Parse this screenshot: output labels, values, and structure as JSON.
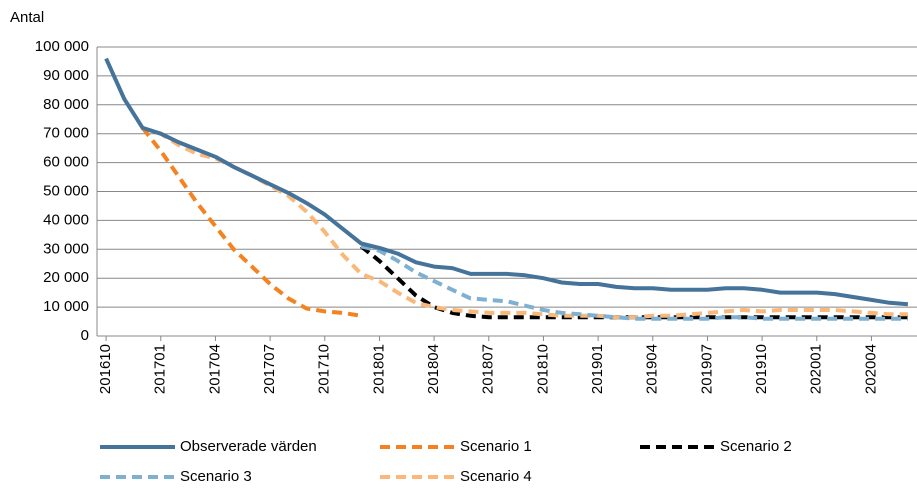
{
  "chart_data": {
    "type": "line",
    "y_label": "Antal",
    "categories": [
      "201610",
      null,
      null,
      "201701",
      null,
      null,
      "201704",
      null,
      null,
      "201707",
      null,
      null,
      "201710",
      null,
      null,
      "201801",
      null,
      null,
      "201804",
      null,
      null,
      "201807",
      null,
      null,
      "201810",
      null,
      null,
      "201901",
      null,
      null,
      "201904",
      null,
      null,
      "201907",
      null,
      null,
      "201910",
      null,
      null,
      "202001",
      null,
      null,
      "202004",
      null,
      null
    ],
    "ylim": [
      0,
      100000
    ],
    "yticks": [
      {
        "value": 0,
        "label": "0"
      },
      {
        "value": 10000,
        "label": "10 000"
      },
      {
        "value": 20000,
        "label": "20 000"
      },
      {
        "value": 30000,
        "label": "30 000"
      },
      {
        "value": 40000,
        "label": "40 000"
      },
      {
        "value": 50000,
        "label": "50 000"
      },
      {
        "value": 60000,
        "label": "60 000"
      },
      {
        "value": 70000,
        "label": "70 000"
      },
      {
        "value": 80000,
        "label": "80 000"
      },
      {
        "value": 90000,
        "label": "90 000"
      },
      {
        "value": 100000,
        "label": "100 000"
      }
    ],
    "grid": true,
    "legend": "bottom",
    "series": [
      {
        "name": "Observerade värden",
        "color": "#45739a",
        "dashed": false,
        "values": [
          96000,
          82000,
          72000,
          70000,
          67000,
          64500,
          62000,
          58500,
          55500,
          52500,
          49500,
          46000,
          42000,
          37000,
          32000,
          30500,
          28500,
          25500,
          24000,
          23500,
          21500,
          21500,
          21500,
          21000,
          20000,
          18500,
          18000,
          18000,
          17000,
          16500,
          16500,
          16000,
          16000,
          16000,
          16500,
          16500,
          16000,
          15000,
          15000,
          15000,
          14500,
          13500,
          12500,
          11500,
          11000
        ]
      },
      {
        "name": "Scenario 1",
        "color": "#f58220",
        "dashed": true,
        "values": [
          null,
          null,
          72000,
          64000,
          55000,
          46000,
          38000,
          30000,
          24000,
          18000,
          13000,
          9500,
          8500,
          8000,
          7000,
          null,
          null,
          null,
          null,
          null,
          null,
          null,
          null,
          null,
          null,
          null,
          null,
          null,
          null,
          null,
          null,
          null,
          null,
          null,
          null,
          null,
          null,
          null,
          null,
          null,
          null,
          null,
          null,
          null,
          null
        ]
      },
      {
        "name": "Scenario 2",
        "color": "#000000",
        "dashed": true,
        "values": [
          null,
          null,
          null,
          null,
          null,
          null,
          null,
          null,
          null,
          null,
          null,
          null,
          null,
          null,
          31000,
          26000,
          20000,
          14000,
          10000,
          8000,
          7000,
          6500,
          6500,
          6500,
          6500,
          6500,
          6500,
          6500,
          6500,
          6500,
          6500,
          6500,
          6500,
          6500,
          6500,
          6500,
          6500,
          6500,
          6500,
          6500,
          6500,
          6500,
          6500,
          6500,
          6500
        ]
      },
      {
        "name": "Scenario 3",
        "color": "#7fb0d2",
        "dashed": true,
        "values": [
          null,
          null,
          null,
          null,
          null,
          null,
          null,
          null,
          null,
          null,
          null,
          null,
          null,
          null,
          31000,
          29500,
          26000,
          22000,
          19000,
          16000,
          13000,
          12500,
          12000,
          10500,
          9000,
          8000,
          7500,
          7000,
          6500,
          6000,
          6000,
          6000,
          6000,
          6000,
          6500,
          6500,
          6000,
          6000,
          6000,
          6000,
          6000,
          6000,
          6000,
          6000,
          6000
        ]
      },
      {
        "name": "Scenario 4",
        "color": "#f9b87a",
        "dashed": true,
        "values": [
          null,
          null,
          72000,
          70000,
          66000,
          63000,
          61500,
          58500,
          55500,
          52000,
          48500,
          43000,
          36000,
          28000,
          21500,
          19000,
          15000,
          11500,
          10000,
          9000,
          8500,
          8000,
          8000,
          8000,
          7500,
          7000,
          7000,
          7000,
          6500,
          6500,
          7000,
          7000,
          7500,
          8000,
          8500,
          9000,
          8500,
          9000,
          9000,
          9000,
          9000,
          8500,
          8000,
          7500,
          7500
        ]
      }
    ]
  }
}
